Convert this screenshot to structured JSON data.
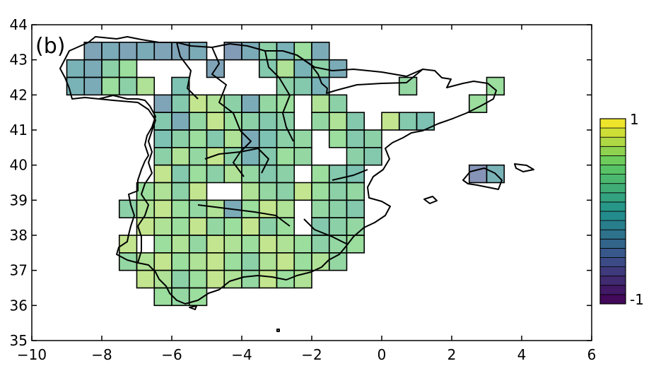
{
  "panel_label": "(b)",
  "chart_data": {
    "type": "heatmap",
    "title": "",
    "xlabel": "",
    "ylabel": "",
    "xlim": [
      -10,
      6
    ],
    "ylim": [
      35,
      44
    ],
    "x_ticks": [
      -10,
      -8,
      -6,
      -4,
      -2,
      0,
      2,
      4,
      6
    ],
    "x_tick_labels": [
      "−10",
      "−8",
      "−6",
      "−4",
      "−2",
      "0",
      "2",
      "4",
      "6"
    ],
    "y_ticks": [
      35,
      36,
      37,
      38,
      39,
      40,
      41,
      42,
      43,
      44
    ],
    "y_tick_labels": [
      "35",
      "36",
      "37",
      "38",
      "39",
      "40",
      "41",
      "42",
      "43",
      "44"
    ],
    "grid": false,
    "cell_size_deg": 0.5,
    "colormap": "viridis",
    "colorbar": {
      "min": -1,
      "max": 1,
      "levels": 20,
      "tick_labels": [
        "-1",
        "1"
      ]
    },
    "cells": [
      [
        -8.25,
        43.25,
        -0.3
      ],
      [
        -7.75,
        43.25,
        -0.2
      ],
      [
        -7.25,
        43.25,
        -0.3
      ],
      [
        -6.75,
        43.25,
        -0.2
      ],
      [
        -6.25,
        43.25,
        -0.3
      ],
      [
        -5.75,
        43.25,
        -0.3
      ],
      [
        -5.25,
        43.25,
        -0.2
      ],
      [
        -4.25,
        43.25,
        -0.4
      ],
      [
        -3.75,
        43.25,
        -0.2
      ],
      [
        -3.25,
        43.25,
        0.3
      ],
      [
        -2.75,
        43.25,
        -0.1
      ],
      [
        -2.25,
        43.25,
        0.5
      ],
      [
        -1.75,
        43.25,
        -0.2
      ],
      [
        -8.75,
        42.75,
        -0.1
      ],
      [
        -8.25,
        42.75,
        -0.2
      ],
      [
        -7.75,
        42.75,
        0.3
      ],
      [
        -7.25,
        42.75,
        0.5
      ],
      [
        -4.75,
        42.75,
        -0.3
      ],
      [
        -3.25,
        42.75,
        0.2
      ],
      [
        -2.75,
        42.75,
        0.6
      ],
      [
        -2.25,
        42.75,
        -0.1
      ],
      [
        -1.75,
        42.75,
        0.3
      ],
      [
        -1.25,
        42.75,
        -0.2
      ],
      [
        -8.75,
        42.25,
        -0.1
      ],
      [
        -8.25,
        42.25,
        -0.2
      ],
      [
        -7.75,
        42.25,
        0.5
      ],
      [
        -7.25,
        42.25,
        0.3
      ],
      [
        -6.75,
        42.25,
        0.6
      ],
      [
        -5.75,
        42.25,
        0.1
      ],
      [
        -2.75,
        42.25,
        0.3
      ],
      [
        -2.25,
        42.25,
        0.2
      ],
      [
        -1.75,
        42.25,
        -0.1
      ],
      [
        0.75,
        42.25,
        0.4
      ],
      [
        3.25,
        42.25,
        0.5
      ],
      [
        -6.25,
        41.75,
        -0.3
      ],
      [
        -5.75,
        41.75,
        0.2
      ],
      [
        -5.25,
        41.75,
        0.7
      ],
      [
        -4.75,
        41.75,
        0.6
      ],
      [
        -4.25,
        41.75,
        0.3
      ],
      [
        -3.75,
        41.75,
        -0.2
      ],
      [
        -3.25,
        41.75,
        0.4
      ],
      [
        -2.75,
        41.75,
        0.5
      ],
      [
        -1.75,
        41.75,
        0.6
      ],
      [
        -1.25,
        41.75,
        0.3
      ],
      [
        2.75,
        41.75,
        0.5
      ],
      [
        -6.25,
        41.25,
        0.2
      ],
      [
        -5.75,
        41.25,
        -0.2
      ],
      [
        -5.25,
        41.25,
        0.4
      ],
      [
        -4.75,
        41.25,
        0.7
      ],
      [
        -4.25,
        41.25,
        0.5
      ],
      [
        -3.75,
        41.25,
        0.3
      ],
      [
        -3.25,
        41.25,
        0.2
      ],
      [
        -2.75,
        41.25,
        0.3
      ],
      [
        -1.75,
        41.25,
        0.4
      ],
      [
        -1.25,
        41.25,
        0.6
      ],
      [
        -0.75,
        41.25,
        0.2
      ],
      [
        0.25,
        41.25,
        0.7
      ],
      [
        0.75,
        41.25,
        0.2
      ],
      [
        1.25,
        41.25,
        0.1
      ],
      [
        -6.25,
        40.75,
        0.1
      ],
      [
        -5.75,
        40.75,
        0.3
      ],
      [
        -5.25,
        40.75,
        0.5
      ],
      [
        -4.75,
        40.75,
        0.2
      ],
      [
        -4.25,
        40.75,
        0.6
      ],
      [
        -3.75,
        40.75,
        -0.2
      ],
      [
        -3.25,
        40.75,
        0.1
      ],
      [
        -2.75,
        40.75,
        0.3
      ],
      [
        -2.25,
        40.75,
        0.4
      ],
      [
        -1.25,
        40.75,
        0.5
      ],
      [
        -0.75,
        40.75,
        0.2
      ],
      [
        -0.25,
        40.75,
        0.3
      ],
      [
        -6.25,
        40.25,
        0.3
      ],
      [
        -5.75,
        40.25,
        0.6
      ],
      [
        -5.25,
        40.25,
        0.4
      ],
      [
        -4.75,
        40.25,
        0.7
      ],
      [
        -4.25,
        40.25,
        0.3
      ],
      [
        -3.75,
        40.25,
        -0.1
      ],
      [
        -3.25,
        40.25,
        0.2
      ],
      [
        -2.75,
        40.25,
        0.5
      ],
      [
        -2.25,
        40.25,
        0.4
      ],
      [
        -0.75,
        40.25,
        0.3
      ],
      [
        -0.25,
        40.25,
        0.2
      ],
      [
        -6.25,
        39.75,
        0.7
      ],
      [
        -5.75,
        39.75,
        0.2
      ],
      [
        -5.25,
        39.75,
        0.5
      ],
      [
        -4.75,
        39.75,
        0.3
      ],
      [
        -4.25,
        39.75,
        0.6
      ],
      [
        -3.75,
        39.75,
        0.4
      ],
      [
        -3.25,
        39.75,
        0.2
      ],
      [
        -2.75,
        39.75,
        0.3
      ],
      [
        -1.75,
        39.75,
        0.5
      ],
      [
        -1.25,
        39.75,
        0.2
      ],
      [
        -0.75,
        39.75,
        0.1
      ],
      [
        -6.75,
        39.25,
        0.5
      ],
      [
        -6.25,
        39.25,
        0.6
      ],
      [
        -5.75,
        39.25,
        0.3
      ],
      [
        -5.25,
        39.25,
        0.7
      ],
      [
        -3.75,
        39.25,
        0.6
      ],
      [
        -3.25,
        39.25,
        0.4
      ],
      [
        -2.75,
        39.25,
        0.3
      ],
      [
        -2.25,
        39.25,
        0.7
      ],
      [
        -1.75,
        39.25,
        0.5
      ],
      [
        -1.25,
        39.25,
        0.3
      ],
      [
        -0.75,
        39.25,
        0.4
      ],
      [
        -7.25,
        38.75,
        0.3
      ],
      [
        -6.75,
        38.75,
        0.6
      ],
      [
        -6.25,
        38.75,
        0.7
      ],
      [
        -5.75,
        38.75,
        0.5
      ],
      [
        -5.25,
        38.75,
        0.4
      ],
      [
        -4.75,
        38.75,
        0.6
      ],
      [
        -4.25,
        38.75,
        -0.2
      ],
      [
        -3.75,
        38.75,
        0.5
      ],
      [
        -3.25,
        38.75,
        0.7
      ],
      [
        -2.75,
        38.75,
        0.6
      ],
      [
        -1.75,
        38.75,
        0.4
      ],
      [
        -1.25,
        38.75,
        0.3
      ],
      [
        -0.75,
        38.75,
        0.2
      ],
      [
        -6.75,
        38.25,
        0.7
      ],
      [
        -6.25,
        38.25,
        0.6
      ],
      [
        -5.75,
        38.25,
        0.5
      ],
      [
        -5.25,
        38.25,
        0.7
      ],
      [
        -4.75,
        38.25,
        0.4
      ],
      [
        -4.25,
        38.25,
        0.5
      ],
      [
        -3.75,
        38.25,
        0.7
      ],
      [
        -3.25,
        38.25,
        0.3
      ],
      [
        -2.75,
        38.25,
        0.5
      ],
      [
        -1.75,
        38.25,
        0.2
      ],
      [
        -1.25,
        38.25,
        0.3
      ],
      [
        -0.75,
        38.25,
        0.4
      ],
      [
        -7.25,
        37.75,
        0.7
      ],
      [
        -6.25,
        37.75,
        0.5
      ],
      [
        -5.75,
        37.75,
        0.6
      ],
      [
        -5.25,
        37.75,
        0.4
      ],
      [
        -4.75,
        37.75,
        0.7
      ],
      [
        -4.25,
        37.75,
        0.6
      ],
      [
        -3.75,
        37.75,
        0.5
      ],
      [
        -3.25,
        37.75,
        0.7
      ],
      [
        -2.75,
        37.75,
        0.6
      ],
      [
        -2.25,
        37.75,
        0.5
      ],
      [
        -1.75,
        37.75,
        0.3
      ],
      [
        -1.25,
        37.75,
        0.4
      ],
      [
        -0.75,
        37.75,
        0.5
      ],
      [
        -7.25,
        37.25,
        0.4
      ],
      [
        -6.75,
        37.25,
        0.6
      ],
      [
        -6.25,
        37.25,
        0.7
      ],
      [
        -5.75,
        37.25,
        0.5
      ],
      [
        -5.25,
        37.25,
        0.6
      ],
      [
        -4.75,
        37.25,
        0.7
      ],
      [
        -4.25,
        37.25,
        0.5
      ],
      [
        -3.75,
        37.25,
        0.3
      ],
      [
        -3.25,
        37.25,
        0.6
      ],
      [
        -2.75,
        37.25,
        0.7
      ],
      [
        -2.25,
        37.25,
        0.5
      ],
      [
        -1.75,
        37.25,
        0.6
      ],
      [
        -1.25,
        37.25,
        0.4
      ],
      [
        -6.75,
        36.75,
        0.7
      ],
      [
        -6.25,
        36.75,
        0.6
      ],
      [
        -5.75,
        36.75,
        0.3
      ],
      [
        -5.25,
        36.75,
        0.5
      ],
      [
        -4.75,
        36.75,
        0.7
      ],
      [
        -4.25,
        36.75,
        0.6
      ],
      [
        -3.75,
        36.75,
        0.4
      ],
      [
        -3.25,
        36.75,
        0.7
      ],
      [
        -2.75,
        36.75,
        0.5
      ],
      [
        -2.25,
        36.75,
        0.6
      ],
      [
        -6.25,
        36.25,
        0.5
      ],
      [
        -5.75,
        36.25,
        0.4
      ],
      [
        -5.25,
        36.25,
        0.5
      ],
      [
        2.75,
        39.75,
        -0.5
      ],
      [
        3.25,
        39.75,
        -0.1
      ]
    ]
  },
  "colors": {
    "axis": "#000000",
    "coast": "#000000",
    "background": "#ffffff"
  }
}
